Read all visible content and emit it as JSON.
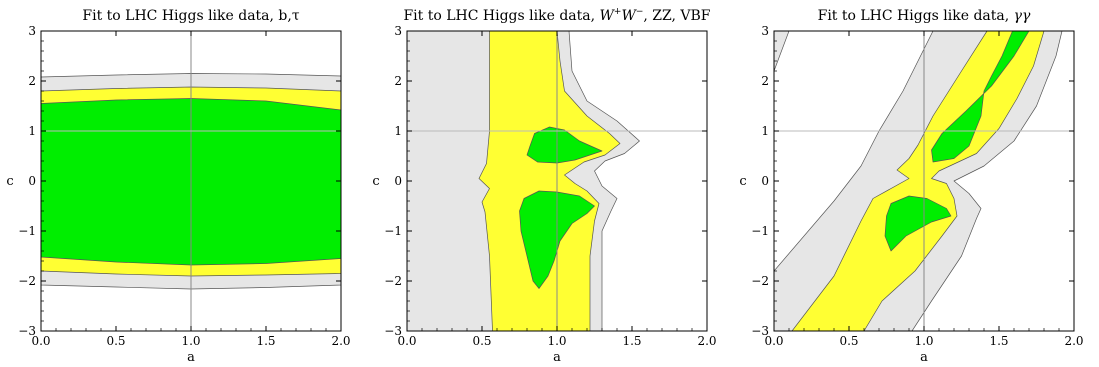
{
  "chart_data": [
    {
      "type": "contour",
      "title": "Fit to LHC Higgs like data, b,τ",
      "xlabel": "a",
      "ylabel": "c",
      "xlim": [
        0,
        2
      ],
      "ylim": [
        -3,
        3
      ],
      "xticks": [
        "0.0",
        "0.5",
        "1.0",
        "1.5",
        "2.0"
      ],
      "yticks": [
        "−3",
        "−2",
        "−1",
        "0",
        "1",
        "2",
        "3"
      ],
      "reference_lines": {
        "x": 1,
        "y": 1
      },
      "regions": [
        {
          "level": "gray",
          "color": "#e6e6e6",
          "polygons": [
            [
              [
                0,
                2.08
              ],
              [
                0.5,
                2.12
              ],
              [
                1,
                2.15
              ],
              [
                1.5,
                2.14
              ],
              [
                2,
                2.1
              ],
              [
                2,
                -2.08
              ],
              [
                1.5,
                -2.13
              ],
              [
                1,
                -2.16
              ],
              [
                0.5,
                -2.12
              ],
              [
                0,
                -2.08
              ]
            ]
          ]
        },
        {
          "level": "yellow",
          "color": "#ffff33",
          "polygons": [
            [
              [
                0,
                1.8
              ],
              [
                0.5,
                1.85
              ],
              [
                1,
                1.88
              ],
              [
                1.5,
                1.86
              ],
              [
                2,
                1.8
              ],
              [
                2,
                -1.85
              ],
              [
                1.5,
                -1.88
              ],
              [
                1,
                -1.9
              ],
              [
                0.5,
                -1.86
              ],
              [
                0,
                -1.8
              ]
            ]
          ]
        },
        {
          "level": "green",
          "color": "#00ee00",
          "polygons": [
            [
              [
                0,
                1.55
              ],
              [
                0.5,
                1.62
              ],
              [
                1,
                1.65
              ],
              [
                1.5,
                1.6
              ],
              [
                2,
                1.42
              ],
              [
                2,
                -1.55
              ],
              [
                1.5,
                -1.65
              ],
              [
                1,
                -1.68
              ],
              [
                0.5,
                -1.62
              ],
              [
                0,
                -1.52
              ]
            ]
          ]
        }
      ]
    },
    {
      "type": "contour",
      "title_parts": [
        "Fit to LHC Higgs like data, ",
        "W",
        "+",
        "W",
        "−",
        ", ZZ, VBF"
      ],
      "xlabel": "a",
      "ylabel": "c",
      "xlim": [
        0,
        2
      ],
      "ylim": [
        -3,
        3
      ],
      "xticks": [
        "0.0",
        "0.5",
        "1.0",
        "1.5",
        "2.0"
      ],
      "yticks": [
        "−3",
        "−2",
        "−1",
        "0",
        "1",
        "2",
        "3"
      ],
      "reference_lines": {
        "x": 1,
        "y": 1
      },
      "regions": [
        {
          "level": "gray",
          "color": "#e6e6e6",
          "polygons": [
            [
              [
                0,
                3
              ],
              [
                1.08,
                3
              ],
              [
                1.1,
                2.2
              ],
              [
                1.2,
                1.6
              ],
              [
                1.4,
                1.2
              ],
              [
                1.55,
                0.8
              ],
              [
                1.45,
                0.55
              ],
              [
                1.32,
                0.4
              ],
              [
                1.25,
                0.2
              ],
              [
                1.3,
                -0.1
              ],
              [
                1.4,
                -0.35
              ],
              [
                1.36,
                -0.6
              ],
              [
                1.3,
                -1.0
              ],
              [
                1.3,
                -2.0
              ],
              [
                1.3,
                -3
              ],
              [
                0,
                -3
              ]
            ]
          ]
        },
        {
          "level": "yellow",
          "color": "#ffff33",
          "polygons": [
            [
              [
                0.55,
                3
              ],
              [
                1.0,
                3
              ],
              [
                1.02,
                2.4
              ],
              [
                1.05,
                1.8
              ],
              [
                1.2,
                1.3
              ],
              [
                1.35,
                0.95
              ],
              [
                1.42,
                0.75
              ],
              [
                1.32,
                0.52
              ],
              [
                1.18,
                0.38
              ],
              [
                1.05,
                0.12
              ],
              [
                1.12,
                -0.05
              ],
              [
                1.2,
                -0.2
              ],
              [
                1.28,
                -0.45
              ],
              [
                1.25,
                -0.8
              ],
              [
                1.22,
                -1.5
              ],
              [
                1.22,
                -3
              ],
              [
                0.57,
                -3
              ],
              [
                0.55,
                -1.5
              ],
              [
                0.52,
                -0.62
              ],
              [
                0.5,
                -0.42
              ],
              [
                0.55,
                -0.15
              ],
              [
                0.48,
                0.05
              ],
              [
                0.53,
                0.35
              ],
              [
                0.55,
                1.0
              ],
              [
                0.55,
                2.0
              ]
            ]
          ]
        },
        {
          "level": "green",
          "color": "#00ee00",
          "polygons": [
            [
              [
                0.82,
                0.7
              ],
              [
                0.85,
                0.95
              ],
              [
                0.95,
                1.08
              ],
              [
                1.05,
                1.02
              ],
              [
                1.15,
                0.8
              ],
              [
                1.3,
                0.6
              ],
              [
                1.12,
                0.42
              ],
              [
                1.0,
                0.36
              ],
              [
                0.87,
                0.38
              ],
              [
                0.8,
                0.52
              ]
            ],
            [
              [
                0.78,
                -0.35
              ],
              [
                0.88,
                -0.2
              ],
              [
                1.0,
                -0.22
              ],
              [
                1.15,
                -0.3
              ],
              [
                1.25,
                -0.5
              ],
              [
                1.2,
                -0.65
              ],
              [
                1.1,
                -0.85
              ],
              [
                1.02,
                -1.2
              ],
              [
                0.98,
                -1.6
              ],
              [
                0.94,
                -1.9
              ],
              [
                0.88,
                -2.15
              ],
              [
                0.84,
                -2.0
              ],
              [
                0.8,
                -1.5
              ],
              [
                0.76,
                -1.0
              ],
              [
                0.75,
                -0.6
              ]
            ]
          ]
        }
      ]
    },
    {
      "type": "contour",
      "title_parts": [
        "Fit to LHC Higgs like data, ",
        "γγ"
      ],
      "xlabel": "a",
      "ylabel": "c",
      "xlim": [
        0,
        2
      ],
      "ylim": [
        -3,
        3
      ],
      "xticks": [
        "0.0",
        "0.5",
        "1.0",
        "1.5",
        "2.0"
      ],
      "yticks": [
        "−3",
        "−2",
        "−1",
        "0",
        "1",
        "2",
        "3"
      ],
      "reference_lines": {
        "x": 1,
        "y": 1
      },
      "regions": [
        {
          "level": "gray",
          "color": "#e6e6e6",
          "polygons": [
            [
              [
                0,
                2.2
              ],
              [
                0.1,
                3
              ],
              [
                0,
                3
              ]
            ],
            [
              [
                0,
                -1.8
              ],
              [
                0.4,
                -0.4
              ],
              [
                0.58,
                0.3
              ],
              [
                0.7,
                1.0
              ],
              [
                0.86,
                1.8
              ],
              [
                1.06,
                3
              ],
              [
                1.92,
                3
              ],
              [
                1.88,
                2.5
              ],
              [
                1.75,
                1.5
              ],
              [
                1.6,
                0.8
              ],
              [
                1.4,
                0.3
              ],
              [
                1.2,
                0.0
              ],
              [
                1.3,
                -0.25
              ],
              [
                1.38,
                -0.55
              ],
              [
                1.35,
                -0.75
              ],
              [
                1.25,
                -1.5
              ],
              [
                1.05,
                -2.4
              ],
              [
                0.92,
                -3
              ],
              [
                0,
                -3
              ]
            ]
          ]
        },
        {
          "level": "yellow",
          "color": "#ffff33",
          "polygons": [
            [
              [
                0.12,
                -3
              ],
              [
                0.4,
                -1.9
              ],
              [
                0.58,
                -0.8
              ],
              [
                0.66,
                -0.35
              ],
              [
                0.9,
                0.05
              ],
              [
                0.82,
                0.22
              ],
              [
                0.9,
                0.45
              ],
              [
                0.96,
                0.72
              ],
              [
                1.06,
                1.3
              ],
              [
                1.25,
                2.2
              ],
              [
                1.42,
                3
              ],
              [
                1.8,
                3
              ],
              [
                1.73,
                2.3
              ],
              [
                1.62,
                1.65
              ],
              [
                1.5,
                1.05
              ],
              [
                1.35,
                0.55
              ],
              [
                1.1,
                0.2
              ],
              [
                1.05,
                0.05
              ],
              [
                1.15,
                -0.05
              ],
              [
                1.2,
                -0.35
              ],
              [
                1.22,
                -0.7
              ],
              [
                1.12,
                -1.1
              ],
              [
                0.94,
                -1.8
              ],
              [
                0.72,
                -2.4
              ],
              [
                0.6,
                -3
              ]
            ]
          ]
        },
        {
          "level": "green",
          "color": "#00ee00",
          "polygons": [
            [
              [
                1.06,
                0.38
              ],
              [
                1.05,
                0.62
              ],
              [
                1.12,
                0.95
              ],
              [
                1.28,
                1.4
              ],
              [
                1.45,
                1.9
              ],
              [
                1.6,
                2.5
              ],
              [
                1.7,
                3
              ],
              [
                1.59,
                3
              ],
              [
                1.52,
                2.5
              ],
              [
                1.45,
                2.1
              ],
              [
                1.4,
                1.8
              ],
              [
                1.38,
                1.3
              ],
              [
                1.3,
                0.7
              ],
              [
                1.2,
                0.45
              ]
            ],
            [
              [
                0.75,
                -0.7
              ],
              [
                0.78,
                -0.45
              ],
              [
                0.9,
                -0.3
              ],
              [
                1.02,
                -0.35
              ],
              [
                1.15,
                -0.55
              ],
              [
                1.18,
                -0.7
              ],
              [
                1.05,
                -0.82
              ],
              [
                0.88,
                -1.1
              ],
              [
                0.78,
                -1.4
              ],
              [
                0.74,
                -1.1
              ]
            ]
          ]
        }
      ]
    }
  ]
}
